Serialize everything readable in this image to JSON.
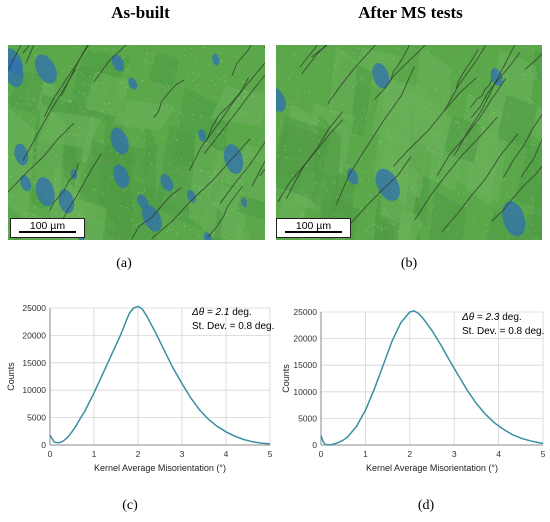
{
  "headers": {
    "left": "As-built",
    "right": "After MS tests"
  },
  "maps": [
    {
      "scalebar": "100 µm",
      "label": "(a)"
    },
    {
      "scalebar": "100 µm",
      "label": "(b)"
    }
  ],
  "colors": {
    "curve": "#3a8fa3",
    "grid": "#d6d6d6",
    "axis": "#8a8a8a",
    "map_green": "#5aa84a",
    "map_blue": "#2f6fb0"
  },
  "chart_data": [
    {
      "type": "line",
      "label": "(c)",
      "xlabel": "Kernel Average Misorientation (°)",
      "ylabel": "Counts",
      "xlim": [
        0,
        5
      ],
      "ylim": [
        0,
        25000
      ],
      "xticks": [
        "0",
        "1",
        "2",
        "3",
        "4",
        "5"
      ],
      "yticks": [
        "0",
        "5000",
        "10000",
        "15000",
        "20000",
        "25000"
      ],
      "grid": true,
      "annotation": {
        "symbol": "Δθ = 2.1",
        "unit": " deg.",
        "stdev": "St. Dev. = 0.8 deg."
      },
      "x": [
        0.0,
        0.1,
        0.2,
        0.3,
        0.4,
        0.5,
        0.6,
        0.7,
        0.8,
        1.0,
        1.2,
        1.4,
        1.6,
        1.8,
        1.9,
        2.0,
        2.1,
        2.2,
        2.4,
        2.6,
        2.8,
        3.0,
        3.2,
        3.4,
        3.6,
        3.8,
        4.0,
        4.2,
        4.4,
        4.6,
        4.8,
        5.0
      ],
      "y": [
        1800,
        500,
        400,
        700,
        1400,
        2400,
        3600,
        5000,
        6300,
        9500,
        13000,
        16500,
        20000,
        24000,
        25000,
        25300,
        24800,
        23500,
        20500,
        17200,
        14000,
        11200,
        8600,
        6400,
        4700,
        3400,
        2400,
        1600,
        1000,
        600,
        350,
        200
      ]
    },
    {
      "type": "line",
      "label": "(d)",
      "xlabel": "Kernel Average Misorientation (°)",
      "ylabel": "Counts",
      "xlim": [
        0,
        5
      ],
      "ylim": [
        0,
        25000
      ],
      "xticks": [
        "0",
        "1",
        "2",
        "3",
        "4",
        "5"
      ],
      "yticks": [
        "0",
        "5000",
        "10000",
        "15000",
        "20000",
        "25000"
      ],
      "grid": true,
      "annotation": {
        "symbol": "Δθ = 2.3",
        "unit": " deg.",
        "stdev": "St. Dev. = 0.8 deg."
      },
      "x": [
        0.0,
        0.05,
        0.1,
        0.2,
        0.3,
        0.4,
        0.5,
        0.6,
        0.8,
        1.0,
        1.2,
        1.4,
        1.6,
        1.8,
        2.0,
        2.1,
        2.2,
        2.3,
        2.5,
        2.7,
        2.9,
        3.1,
        3.3,
        3.5,
        3.7,
        3.9,
        4.1,
        4.3,
        4.5,
        4.7,
        4.9,
        5.0
      ],
      "y": [
        1800,
        600,
        100,
        0,
        200,
        500,
        900,
        1500,
        3500,
        6500,
        10500,
        15000,
        19500,
        23000,
        25000,
        25200,
        24700,
        23800,
        21500,
        18800,
        15800,
        13000,
        10200,
        7800,
        5800,
        4200,
        3000,
        2000,
        1300,
        800,
        450,
        300
      ]
    }
  ]
}
